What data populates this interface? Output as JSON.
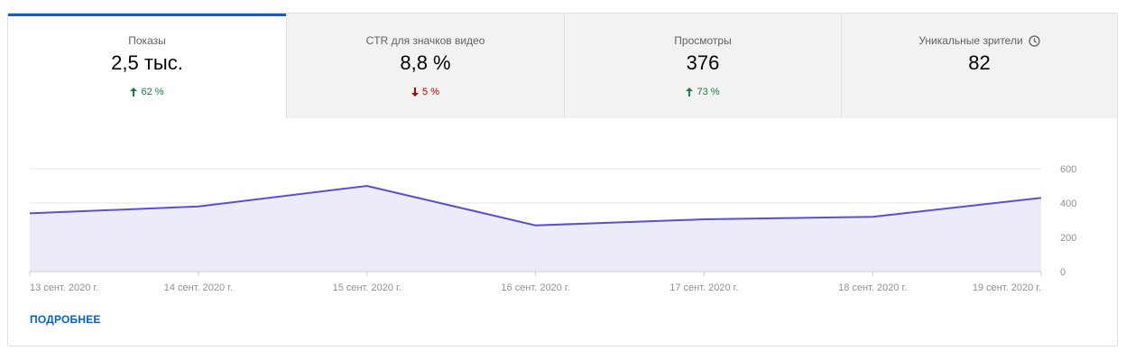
{
  "tabs": [
    {
      "label": "Показы",
      "value": "2,5 тыс.",
      "delta": "62 %",
      "direction": "up",
      "selected": true,
      "has_icon": false
    },
    {
      "label": "CTR для значков видео",
      "value": "8,8 %",
      "delta": "5 %",
      "direction": "down",
      "selected": false,
      "has_icon": false
    },
    {
      "label": "Просмотры",
      "value": "376",
      "delta": "73 %",
      "direction": "up",
      "selected": false,
      "has_icon": false
    },
    {
      "label": "Уникальные зрители",
      "value": "82",
      "delta": "",
      "direction": "",
      "selected": false,
      "has_icon": true,
      "icon": "clock-icon"
    }
  ],
  "colors": {
    "accent": "#065fd4",
    "line": "#5b4fd0",
    "fill": "#ecebfa",
    "up": "#188038",
    "down": "#c00000"
  },
  "more_link": "ПОДРОБНЕЕ",
  "chart_data": {
    "type": "area",
    "x": [
      "13 сент. 2020 г.",
      "14 сент. 2020 г.",
      "15 сент. 2020 г.",
      "16 сент. 2020 г.",
      "17 сент. 2020 г.",
      "18 сент. 2020 г.",
      "19 сент. 2020 г."
    ],
    "series": [
      {
        "values": [
          340,
          380,
          500,
          270,
          305,
          320,
          430
        ]
      }
    ],
    "yticks": [
      "600",
      "400",
      "200",
      "0"
    ],
    "ylim": [
      0,
      600
    ],
    "grid": true,
    "y_axis_side": "right"
  }
}
